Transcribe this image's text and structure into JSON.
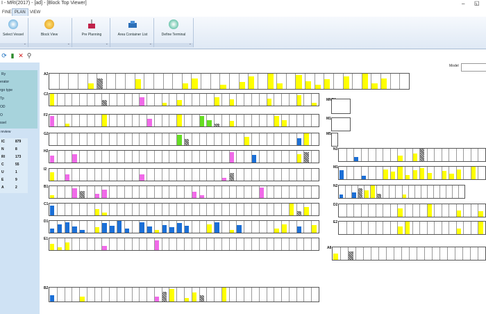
{
  "window": {
    "title": "I - MRI(2017) - [ad] - [Block Top Viewer]",
    "minimize": "–",
    "restore": "◱"
  },
  "menu": {
    "tabs": [
      "FINE",
      "PLAN",
      "VIEW"
    ],
    "active": "PLAN"
  },
  "ribbon": {
    "buttons": [
      {
        "label": "Select Vessel",
        "icon": "vessel-icon"
      },
      {
        "label": "Block View",
        "icon": "block-view-icon"
      },
      {
        "label": "Pre Planning",
        "icon": "pre-planning-icon"
      },
      {
        "label": "Area Container List",
        "icon": "area-container-icon"
      },
      {
        "label": "Define Terminal",
        "icon": "define-terminal-icon"
      }
    ],
    "group_launcher": "⌄"
  },
  "toolbar": {
    "icons": [
      "refresh-icon",
      "save-icon",
      "delete-icon",
      "search-icon"
    ],
    "glyphs": [
      "⟳",
      "▮",
      "✕",
      "⚲"
    ]
  },
  "model": {
    "label": "Model",
    "value": ""
  },
  "sidebar": {
    "items": [
      "Ry",
      "erator",
      "rgo type",
      "Tp",
      "OD",
      "O",
      "ssel",
      "review"
    ],
    "stats": [
      {
        "k": "IC",
        "v": "879"
      },
      {
        "k": "N",
        "v": "8"
      },
      {
        "k": "RI",
        "v": "173"
      },
      {
        "k": "C",
        "v": "55"
      },
      {
        "k": "U",
        "v": "1"
      },
      {
        "k": "E",
        "v": "9"
      },
      {
        "k": "A",
        "v": "2"
      }
    ]
  },
  "blocks": [
    {
      "id": "A2",
      "cells": 38,
      "bars": [
        "w",
        "w",
        "w",
        "w",
        "y",
        "g",
        "w",
        "w",
        "w",
        "y",
        "w",
        "w",
        "w",
        "w",
        "y",
        "y",
        "w",
        "w",
        "y",
        "w",
        "y",
        "y",
        "w",
        "y",
        "y",
        "w",
        "y",
        "y",
        "y",
        "y",
        "w",
        "y",
        "w",
        "y",
        "y",
        "y",
        "w",
        "w"
      ]
    },
    {
      "id": "C2",
      "cells": 36,
      "bars": [
        "y",
        "w",
        "w",
        "w",
        "w",
        "w",
        "w",
        "g",
        "w",
        "w",
        "w",
        "w",
        "p",
        "w",
        "w",
        "y",
        "w",
        "y",
        "w",
        "w",
        "w",
        "w",
        "y",
        "w",
        "y",
        "w",
        "w",
        "w",
        "w",
        "y",
        "w",
        "w",
        "w",
        "y",
        "w",
        "y"
      ]
    },
    {
      "id": "F2",
      "cells": 36,
      "bars": [
        "p",
        "w",
        "y",
        "w",
        "w",
        "w",
        "w",
        "y",
        "w",
        "w",
        "w",
        "w",
        "w",
        "p",
        "w",
        "w",
        "w",
        "y",
        "w",
        "w",
        "l",
        "l",
        "g",
        "w",
        "y",
        "w",
        "w",
        "w",
        "w",
        "w",
        "y",
        "y",
        "w",
        "w",
        "w",
        "w"
      ]
    },
    {
      "id": "G2",
      "cells": 36,
      "bars": [
        "w",
        "w",
        "w",
        "w",
        "w",
        "w",
        "w",
        "w",
        "w",
        "w",
        "w",
        "w",
        "w",
        "w",
        "w",
        "w",
        "w",
        "l",
        "g",
        "w",
        "w",
        "w",
        "w",
        "w",
        "w",
        "w",
        "y",
        "w",
        "w",
        "w",
        "w",
        "w",
        "w",
        "b",
        "y",
        "w"
      ]
    },
    {
      "id": "H2",
      "cells": 36,
      "bars": [
        "p",
        "w",
        "w",
        "p",
        "w",
        "w",
        "w",
        "w",
        "w",
        "w",
        "w",
        "w",
        "w",
        "w",
        "w",
        "w",
        "w",
        "w",
        "w",
        "w",
        "w",
        "w",
        "w",
        "w",
        "p",
        "w",
        "w",
        "b",
        "w",
        "w",
        "w",
        "w",
        "w",
        "y",
        "g",
        "w"
      ]
    },
    {
      "id": "I2",
      "cells": 36,
      "bars": [
        "y",
        "w",
        "p",
        "w",
        "w",
        "w",
        "w",
        "w",
        "w",
        "w",
        "w",
        "w",
        "p",
        "w",
        "w",
        "w",
        "w",
        "w",
        "w",
        "w",
        "w",
        "w",
        "w",
        "p",
        "g",
        "w",
        "w",
        "w",
        "w",
        "w",
        "w",
        "w",
        "w",
        "w",
        "w",
        "w"
      ]
    },
    {
      "id": "B1",
      "cells": 36,
      "bars": [
        "y",
        "w",
        "w",
        "p",
        "g",
        "w",
        "p",
        "p",
        "w",
        "w",
        "w",
        "w",
        "w",
        "w",
        "w",
        "w",
        "w",
        "w",
        "w",
        "p",
        "p",
        "w",
        "w",
        "w",
        "w",
        "w",
        "w",
        "w",
        "p",
        "w",
        "w",
        "w",
        "w",
        "w",
        "w",
        "w"
      ]
    },
    {
      "id": "C1",
      "cells": 36,
      "bars": [
        "b",
        "w",
        "w",
        "w",
        "w",
        "w",
        "y",
        "y",
        "w",
        "w",
        "w",
        "w",
        "w",
        "w",
        "w",
        "w",
        "w",
        "w",
        "w",
        "w",
        "w",
        "w",
        "w",
        "w",
        "w",
        "w",
        "w",
        "w",
        "w",
        "w",
        "w",
        "w",
        "y",
        "g",
        "y",
        "w"
      ]
    },
    {
      "id": "D1",
      "cells": 36,
      "bars": [
        "b",
        "b",
        "b",
        "b",
        "b",
        "w",
        "y",
        "b",
        "b",
        "b",
        "b",
        "w",
        "b",
        "b",
        "y",
        "b",
        "b",
        "b",
        "b",
        "w",
        "w",
        "y",
        "b",
        "w",
        "y",
        "b",
        "w",
        "w",
        "w",
        "w",
        "y",
        "y",
        "w",
        "b",
        "w",
        "y"
      ]
    },
    {
      "id": "E1",
      "cells": 36,
      "bars": [
        "y",
        "y",
        "y",
        "w",
        "w",
        "w",
        "w",
        "p",
        "w",
        "w",
        "w",
        "w",
        "w",
        "w",
        "p",
        "w",
        "w",
        "w",
        "w",
        "w",
        "w",
        "w",
        "w",
        "w",
        "w",
        "w",
        "w",
        "w",
        "w",
        "w",
        "w",
        "w",
        "w",
        "w",
        "w",
        "w"
      ]
    },
    {
      "id": "B2",
      "cells": 36,
      "bars": [
        "b",
        "w",
        "w",
        "w",
        "y",
        "w",
        "w",
        "w",
        "w",
        "w",
        "w",
        "w",
        "w",
        "w",
        "p",
        "g",
        "y",
        "w",
        "y",
        "y",
        "g",
        "w",
        "w",
        "y",
        "w",
        "w",
        "w",
        "w",
        "w",
        "w",
        "w",
        "w",
        "w",
        "w",
        "w",
        "w"
      ]
    },
    {
      "id": "MNR1",
      "cells": 1,
      "bars": [
        "w"
      ]
    },
    {
      "id": "M1",
      "cells": 1,
      "bars": [
        "w"
      ]
    },
    {
      "id": "M5",
      "cells": 1,
      "bars": [
        "w"
      ]
    },
    {
      "id": "N3",
      "cells": 20,
      "bars": [
        "w",
        "w",
        "b",
        "w",
        "w",
        "w",
        "w",
        "w",
        "y",
        "w",
        "y",
        "g",
        "w",
        "w",
        "w",
        "w",
        "w",
        "w",
        "w",
        "w"
      ]
    },
    {
      "id": "M1",
      "cells": 20,
      "bars": [
        "b",
        "w",
        "w",
        "b",
        "w",
        "w",
        "y",
        "y",
        "y",
        "y",
        "y",
        "y",
        "y",
        "w",
        "y",
        "y",
        "y",
        "w",
        "y",
        "w"
      ]
    },
    {
      "id": "N2",
      "cells": 20,
      "bars": [
        "b",
        "w",
        "b",
        "g",
        "y",
        "y",
        "g",
        "w",
        "w",
        "w",
        "y",
        "w",
        "w",
        "w",
        "w",
        "w",
        "w",
        "w",
        "w",
        "w"
      ]
    },
    {
      "id": "D2",
      "cells": 20,
      "bars": [
        "w",
        "w",
        "w",
        "w",
        "w",
        "w",
        "w",
        "w",
        "y",
        "w",
        "w",
        "w",
        "y",
        "w",
        "w",
        "w",
        "y",
        "w",
        "w",
        "y"
      ]
    },
    {
      "id": "E2",
      "cells": 20,
      "bars": [
        "w",
        "w",
        "w",
        "w",
        "w",
        "w",
        "w",
        "w",
        "y",
        "y",
        "w",
        "w",
        "w",
        "w",
        "w",
        "w",
        "y",
        "w",
        "w",
        "y"
      ]
    },
    {
      "id": "A8",
      "cells": 20,
      "bars": [
        "y",
        "w",
        "g",
        "w",
        "w",
        "w",
        "w",
        "w",
        "w",
        "w",
        "w",
        "w",
        "w",
        "w",
        "w",
        "w",
        "w",
        "w",
        "w",
        "w"
      ]
    }
  ],
  "legend_colors": {
    "y": "#ffff00",
    "p": "#f06ae8",
    "b": "#1b6fd6",
    "l": "#66dd22",
    "g": "grey-stripe",
    "w": "empty"
  }
}
